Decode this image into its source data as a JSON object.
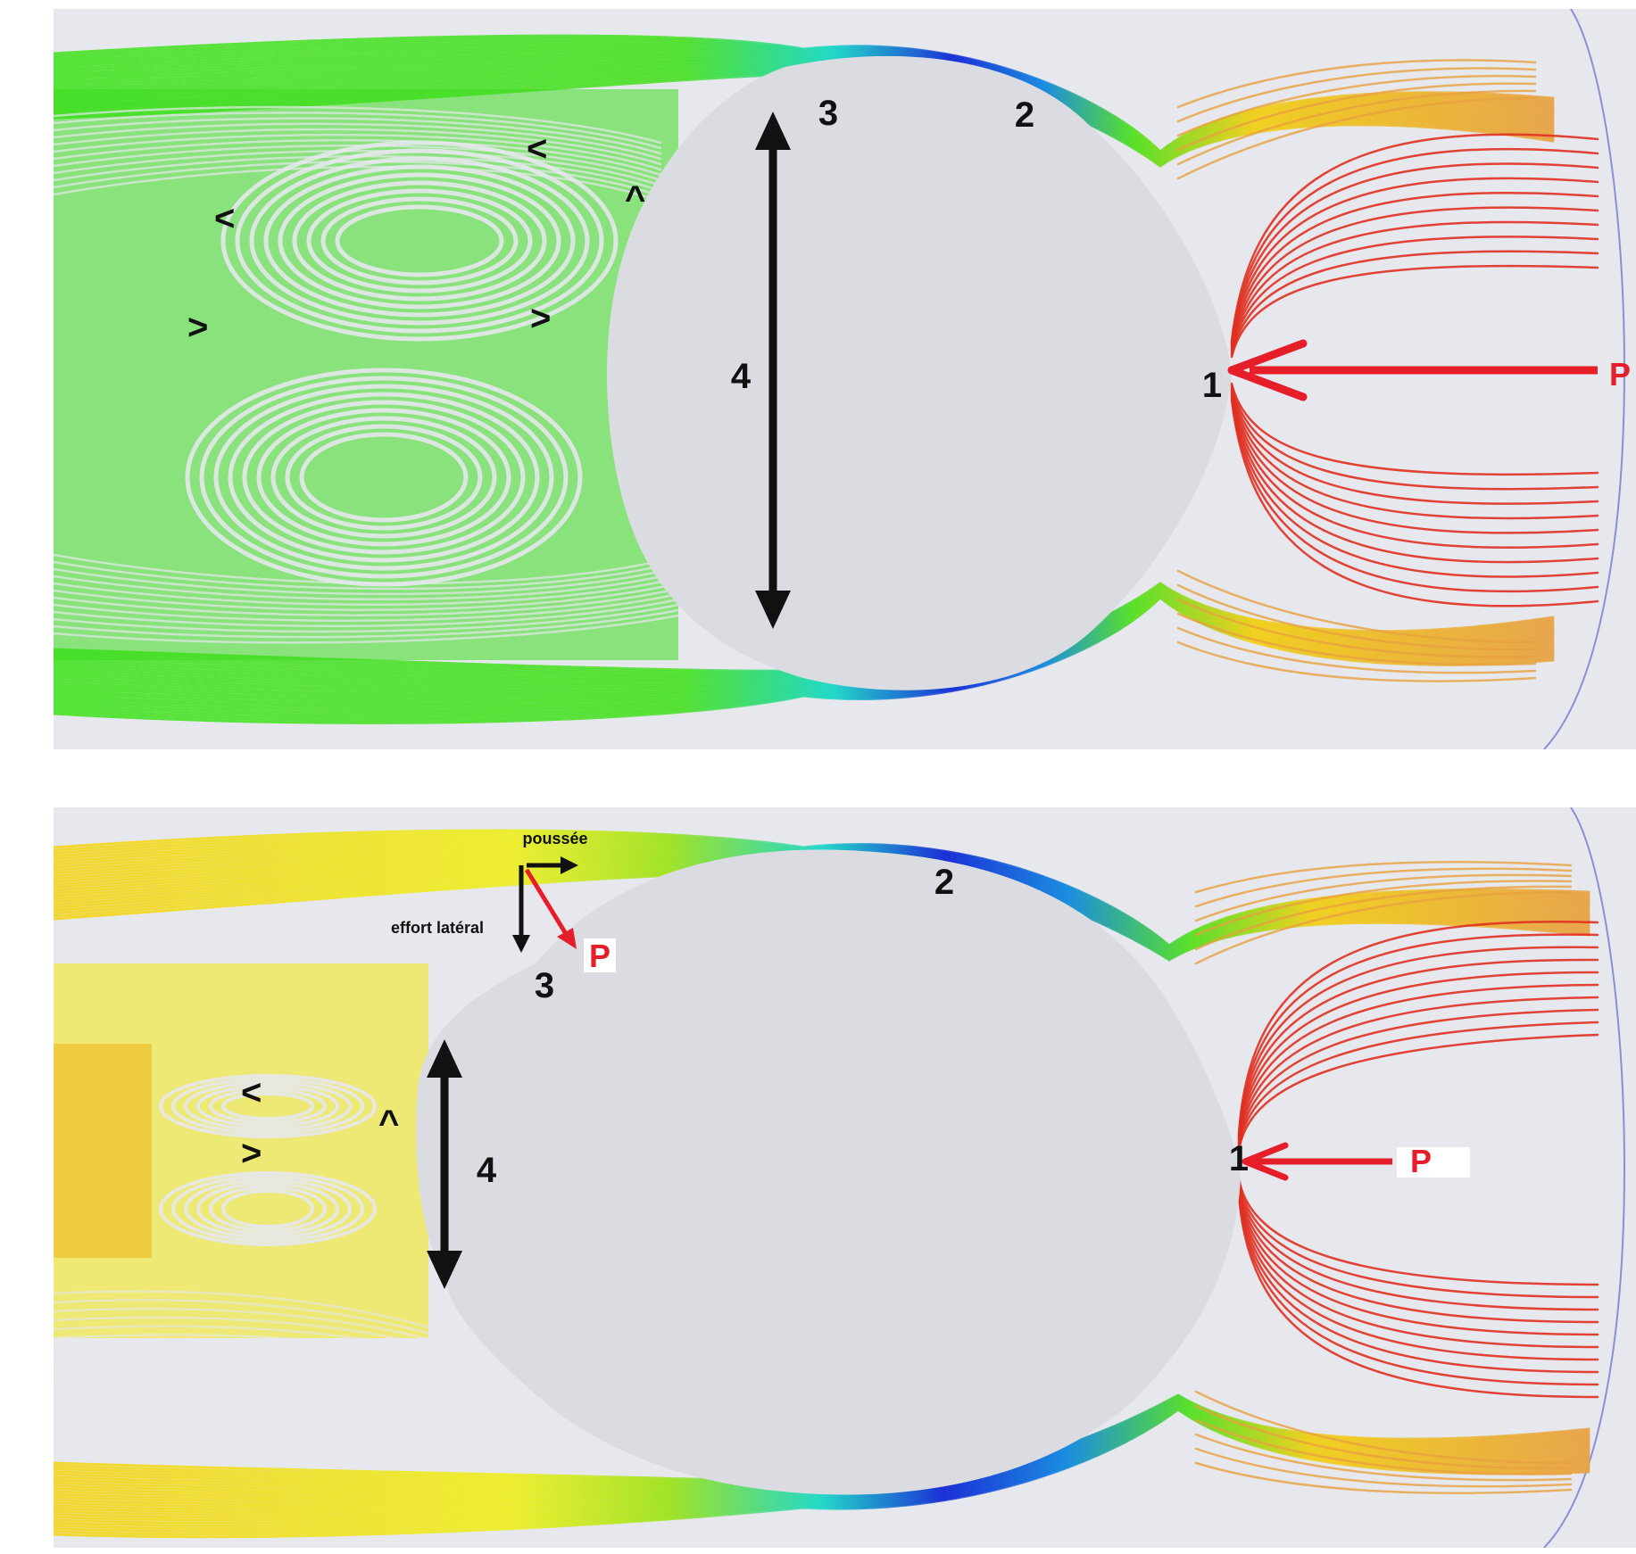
{
  "colors": {
    "background": "#ffffff",
    "panel_background": "#e6e8ed",
    "cylinder": "#d8dade",
    "pressure_arrow": "#e51e2a",
    "dimension_arrow": "#111111",
    "streamline_stagnation": "#e03020",
    "streamline_freestream": "#e8a040",
    "streamline_accelerated": "#1a2fd6",
    "streamline_wake_top": "#3ddc1e",
    "streamline_wake_bottom": "#f4ea10"
  },
  "panels": [
    {
      "name": "top",
      "labels": {
        "point_1": "1",
        "point_2": "2",
        "point_3": "3",
        "dimension_4": "4",
        "pressure": "P"
      },
      "vortex_arrows": 5
    },
    {
      "name": "bottom",
      "labels": {
        "point_1": "1",
        "point_2": "2",
        "point_3": "3",
        "dimension_4": "4",
        "pressure": "P",
        "pressure_at_3": "P",
        "thrust": "poussée",
        "side_force": "effort latéral"
      },
      "vortex_arrows": 3
    }
  ]
}
